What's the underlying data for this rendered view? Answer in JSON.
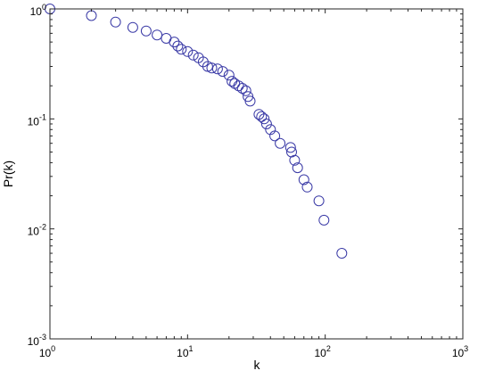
{
  "chart_data": {
    "type": "scatter",
    "xlabel": "k",
    "ylabel": "Pr(k)",
    "xscale": "log",
    "yscale": "log",
    "xlim": [
      1,
      1000
    ],
    "ylim": [
      0.001,
      1
    ],
    "grid": false,
    "marker": "open-circle",
    "marker_color": "#3a3aa6",
    "x_ticks": [
      {
        "base": "10",
        "exp": "0",
        "value": 1
      },
      {
        "base": "10",
        "exp": "1",
        "value": 10
      },
      {
        "base": "10",
        "exp": "2",
        "value": 100
      },
      {
        "base": "10",
        "exp": "3",
        "value": 1000
      }
    ],
    "y_ticks": [
      {
        "base": "10",
        "exp": "0",
        "value": 1
      },
      {
        "base": "10",
        "exp": "-1",
        "value": 0.1
      },
      {
        "base": "10",
        "exp": "-2",
        "value": 0.01
      },
      {
        "base": "10",
        "exp": "-3",
        "value": 0.001
      }
    ],
    "points": [
      [
        1.0,
        1.0
      ],
      [
        2.0,
        0.87
      ],
      [
        3.0,
        0.76
      ],
      [
        4.0,
        0.68
      ],
      [
        5.0,
        0.63
      ],
      [
        6.0,
        0.58
      ],
      [
        7.0,
        0.54
      ],
      [
        8.0,
        0.5
      ],
      [
        8.5,
        0.46
      ],
      [
        9.0,
        0.43
      ],
      [
        10.0,
        0.41
      ],
      [
        11.0,
        0.38
      ],
      [
        12.0,
        0.36
      ],
      [
        13.0,
        0.33
      ],
      [
        14.0,
        0.3
      ],
      [
        15.0,
        0.29
      ],
      [
        16.5,
        0.285
      ],
      [
        18.0,
        0.27
      ],
      [
        20.0,
        0.25
      ],
      [
        21.0,
        0.22
      ],
      [
        22.0,
        0.21
      ],
      [
        23.5,
        0.2
      ],
      [
        25.0,
        0.19
      ],
      [
        26.5,
        0.18
      ],
      [
        27.5,
        0.16
      ],
      [
        28.5,
        0.145
      ],
      [
        33.0,
        0.11
      ],
      [
        34.5,
        0.105
      ],
      [
        36.0,
        0.1
      ],
      [
        37.5,
        0.09
      ],
      [
        40.0,
        0.08
      ],
      [
        43.0,
        0.07
      ],
      [
        47.0,
        0.06
      ],
      [
        56.0,
        0.055
      ],
      [
        57.0,
        0.05
      ],
      [
        60.0,
        0.042
      ],
      [
        63.0,
        0.036
      ],
      [
        70.0,
        0.028
      ],
      [
        74.0,
        0.024
      ],
      [
        90.0,
        0.018
      ],
      [
        98.0,
        0.012
      ],
      [
        132.0,
        0.006
      ]
    ]
  }
}
